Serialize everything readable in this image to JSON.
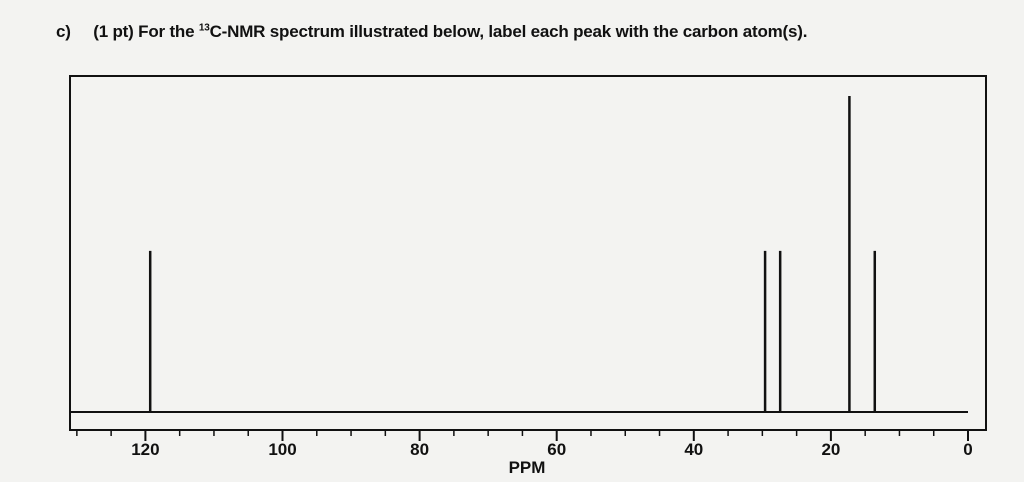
{
  "question": {
    "label": "c)",
    "points": "(1 pt)",
    "text_before": "For the ",
    "isotope_mass": "13",
    "text_after": "C-NMR spectrum illustrated below, label each peak with the carbon atom(s)."
  },
  "chart_data": {
    "type": "bar",
    "title": "",
    "xlabel": "PPM",
    "ylabel": "",
    "x_reversed": true,
    "xlim": [
      0,
      131
    ],
    "ylim": [
      0,
      1
    ],
    "xticks": [
      120,
      100,
      80,
      60,
      40,
      20,
      0
    ],
    "minor_tick_step": 5,
    "grid": false,
    "peaks": [
      {
        "ppm": 119.3,
        "intensity": 0.51
      },
      {
        "ppm": 29.6,
        "intensity": 0.51
      },
      {
        "ppm": 27.4,
        "intensity": 0.51
      },
      {
        "ppm": 17.3,
        "intensity": 1.0
      },
      {
        "ppm": 13.6,
        "intensity": 0.51
      }
    ]
  }
}
